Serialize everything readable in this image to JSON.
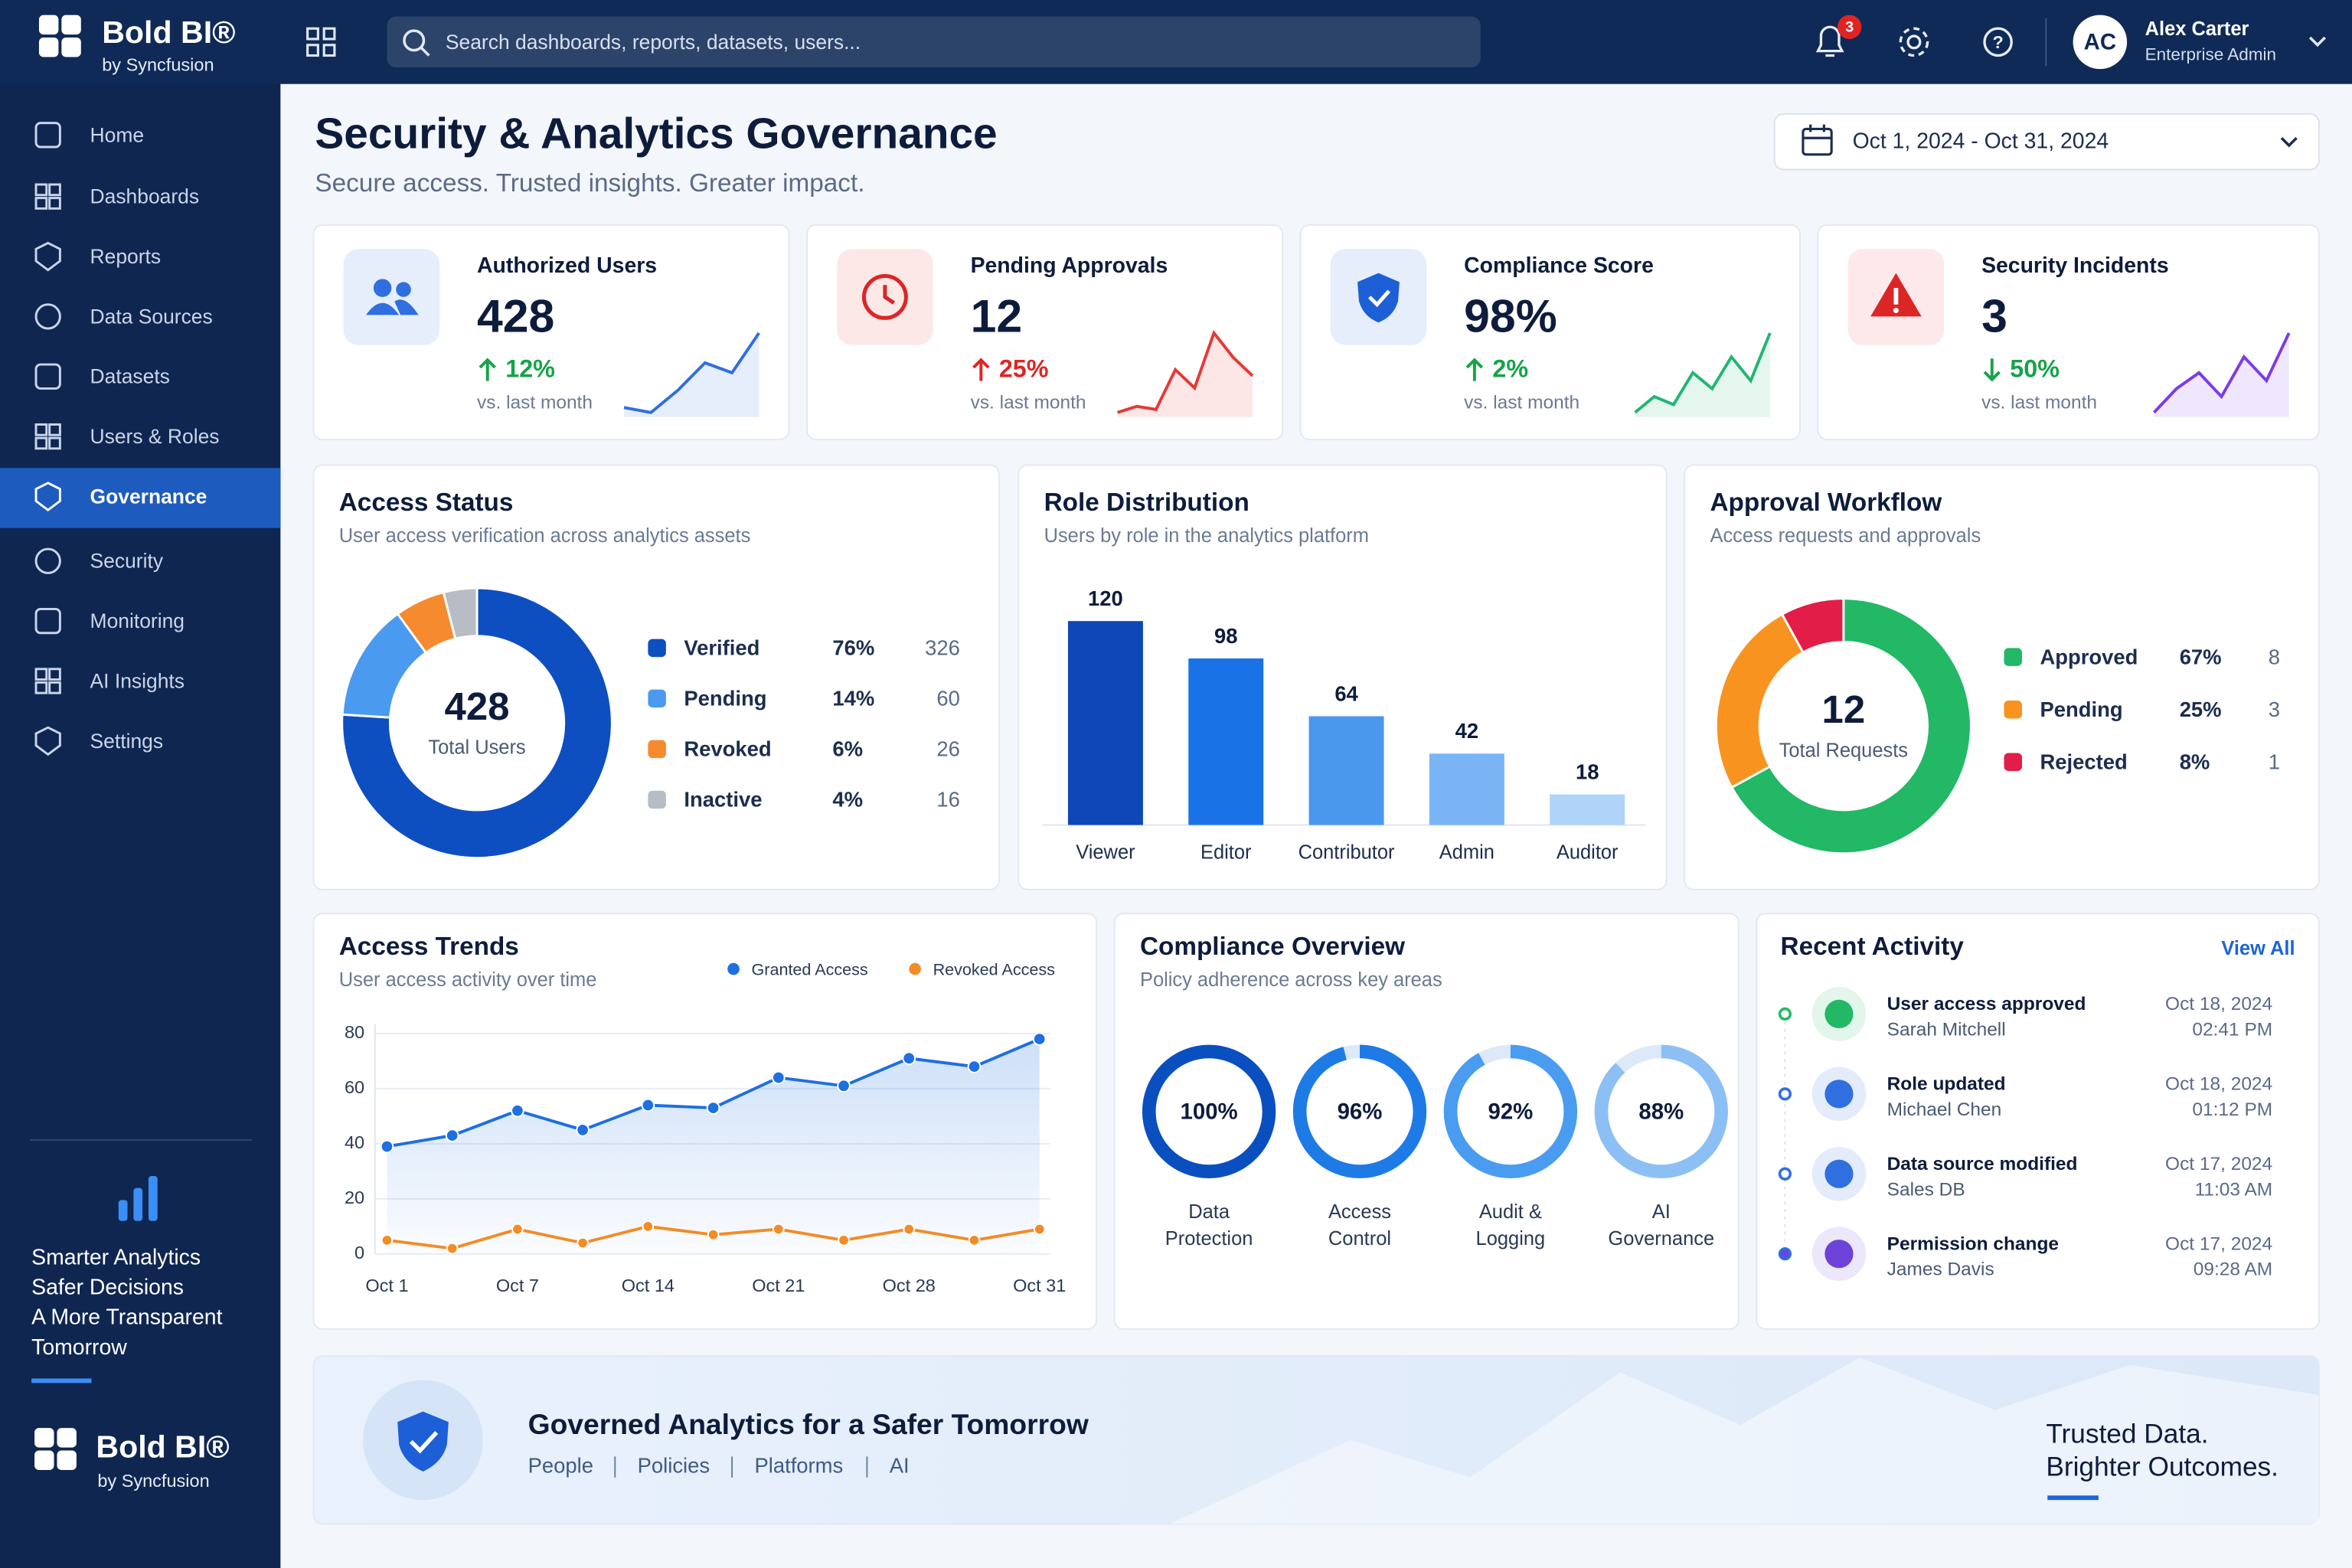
{
  "app": {
    "brand": "Bold BI®",
    "brand_by": "by Syncfusion",
    "search_placeholder": "Search dashboards, reports, datasets, users...",
    "notification_count": 3,
    "user": {
      "initials": "AC",
      "name": "Alex Carter",
      "role": "Enterprise Admin"
    }
  },
  "nav": [
    {
      "label": "Home"
    },
    {
      "label": "Dashboards"
    },
    {
      "label": "Reports"
    },
    {
      "label": "Data Sources"
    },
    {
      "label": "Datasets"
    },
    {
      "label": "Users & Roles"
    },
    {
      "label": "Governance",
      "active": true
    },
    {
      "label": "Security"
    },
    {
      "label": "Monitoring"
    },
    {
      "label": "AI Insights"
    },
    {
      "label": "Settings"
    }
  ],
  "sidebar": {
    "tagline": [
      "Smarter Analytics",
      "Safer Decisions",
      "A More Transparent",
      "Tomorrow"
    ]
  },
  "header": {
    "title": "Security & Analytics Governance",
    "subtitle": "Secure access. Trusted insights. Greater impact.",
    "date_range": "Oct 1, 2024 - Oct 31, 2024"
  },
  "kpis": [
    {
      "label": "Authorized Users",
      "value": "428",
      "change": "12%",
      "direction": "up",
      "change_color": "#16a34a",
      "note": "vs. last month",
      "icon_color": "#2f6fe0",
      "icon_bg": "#e6eefb",
      "sparkline": {
        "values": [
          20,
          18,
          27,
          38,
          34,
          50
        ],
        "color": "#2f6fe0"
      }
    },
    {
      "label": "Pending Approvals",
      "value": "12",
      "change": "25%",
      "direction": "up",
      "change_color": "#dc2626",
      "note": "vs. last month",
      "icon_color": "#dc2626",
      "icon_bg": "#fde8e8",
      "sparkline": {
        "values": [
          10,
          12,
          11,
          24,
          18,
          36,
          28,
          22
        ],
        "color": "#e53935"
      }
    },
    {
      "label": "Compliance Score",
      "value": "98%",
      "change": "2%",
      "direction": "up",
      "change_color": "#16a34a",
      "note": "vs. last month",
      "icon_color": "#1d5fd6",
      "icon_bg": "#e6eefb",
      "sparkline": {
        "values": [
          10,
          14,
          12,
          20,
          16,
          24,
          18,
          30
        ],
        "color": "#22b573"
      }
    },
    {
      "label": "Security Incidents",
      "value": "3",
      "change": "50%",
      "direction": "down",
      "change_color": "#16a34a",
      "note": "vs. last month",
      "icon_color": "#dc2626",
      "icon_bg": "#fde8ea",
      "sparkline": {
        "values": [
          12,
          18,
          22,
          16,
          26,
          20,
          32
        ],
        "color": "#7c3aed"
      }
    }
  ],
  "chart_data": [
    {
      "type": "donut",
      "title": "Access Status",
      "subtitle": "User access verification across analytics assets",
      "center_value": "428",
      "center_label": "Total Users",
      "categories": [
        "Verified",
        "Pending",
        "Revoked",
        "Inactive"
      ],
      "values": [
        76,
        14,
        6,
        4
      ],
      "value_labels": [
        "76%",
        "14%",
        "6%",
        "4%"
      ],
      "counts": [
        326,
        60,
        26,
        16
      ],
      "colors": [
        "#0d4fc0",
        "#4a9af0",
        "#f68a2e",
        "#b8bcc4"
      ]
    },
    {
      "type": "bar",
      "title": "Role Distribution",
      "subtitle": "Users by role in the analytics platform",
      "categories": [
        "Viewer",
        "Editor",
        "Contributor",
        "Admin",
        "Auditor"
      ],
      "values": [
        120,
        98,
        64,
        42,
        18
      ],
      "colors": [
        "#0d47b8",
        "#1a73e6",
        "#4a97ee",
        "#7ab4f5",
        "#b0d3fa"
      ]
    },
    {
      "type": "donut",
      "title": "Approval Workflow",
      "subtitle": "Access requests and approvals",
      "center_value": "12",
      "center_label": "Total Requests",
      "categories": [
        "Approved",
        "Pending",
        "Rejected"
      ],
      "values": [
        67,
        25,
        8
      ],
      "value_labels": [
        "67%",
        "25%",
        "8%"
      ],
      "counts": [
        8,
        3,
        1
      ],
      "colors": [
        "#22b866",
        "#f7931e",
        "#e11d48"
      ]
    },
    {
      "type": "line",
      "title": "Access Trends",
      "subtitle": "User access activity over time",
      "categories": [
        "Oct 1",
        null,
        "Oct 7",
        null,
        "Oct 14",
        null,
        "Oct 21",
        null,
        "Oct 28",
        null,
        "Oct 31"
      ],
      "series": [
        {
          "name": "Granted Access",
          "color": "#1e6fe0",
          "values": [
            39,
            43,
            52,
            45,
            54,
            53,
            64,
            61,
            71,
            68,
            78
          ]
        },
        {
          "name": "Revoked Access",
          "color": "#f28c28",
          "values": [
            5,
            2,
            9,
            4,
            10,
            7,
            9,
            5,
            9,
            5,
            9
          ]
        }
      ],
      "ylim": [
        0,
        80
      ],
      "yticks": [
        0,
        20,
        40,
        60,
        80
      ],
      "grid": true
    },
    {
      "type": "radial",
      "title": "Compliance Overview",
      "subtitle": "Policy adherence across key areas",
      "categories": [
        "Data Protection",
        "Access Control",
        "Audit & Logging",
        "AI Governance"
      ],
      "values": [
        100,
        96,
        92,
        88
      ],
      "value_labels": [
        "100%",
        "96%",
        "92%",
        "88%"
      ],
      "colors": [
        "#0a4fbf",
        "#1e7be6",
        "#4a9cf0",
        "#8cc0f5"
      ]
    }
  ],
  "recent_activity": {
    "title": "Recent Activity",
    "action": "View All",
    "items": [
      {
        "event": "User access approved",
        "person": "Sarah Mitchell",
        "date": "Oct 18, 2024",
        "time": "02:41 PM",
        "color": "#22b866"
      },
      {
        "event": "Role updated",
        "person": "Michael Chen",
        "date": "Oct 18, 2024",
        "time": "01:12 PM",
        "color": "#2f6fe0"
      },
      {
        "event": "Data source modified",
        "person": "Sales DB",
        "date": "Oct 17, 2024",
        "time": "11:03 AM",
        "color": "#2f6fe0"
      },
      {
        "event": "Permission change",
        "person": "James Davis",
        "date": "Oct 17, 2024",
        "time": "09:28 AM",
        "color": "#6d42d9"
      }
    ]
  },
  "banner": {
    "title": "Governed Analytics for a Safer Tomorrow",
    "links": [
      "People",
      "Policies",
      "Platforms",
      "AI"
    ],
    "tagline": [
      "Trusted Data.",
      "Brighter Outcomes."
    ]
  }
}
